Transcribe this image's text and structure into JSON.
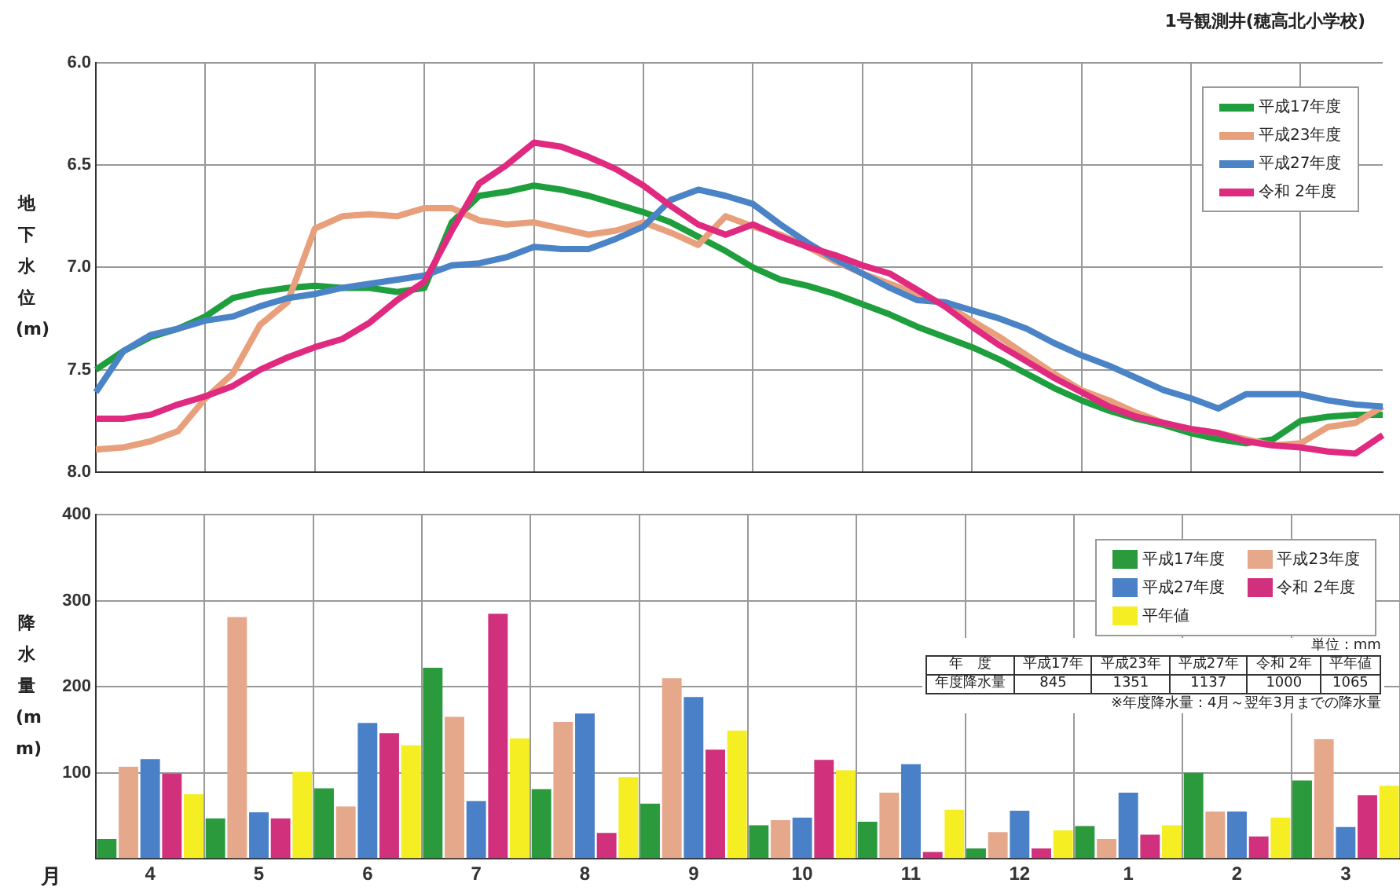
{
  "chart_data": [
    {
      "type": "line",
      "title": "1号観測井(穂高北小学校)",
      "ylabel": "地下水位(m)",
      "categories": [
        null,
        null,
        null,
        null,
        null,
        null,
        null,
        null,
        null,
        null,
        null,
        null,
        null,
        null,
        null,
        null,
        null,
        null,
        null,
        null,
        null,
        null,
        null,
        null,
        null,
        null,
        null,
        null,
        null,
        null,
        null,
        null,
        null,
        null,
        null,
        null,
        null,
        null,
        null,
        null,
        null,
        null,
        null,
        null,
        null,
        null,
        null,
        null
      ],
      "ylim": [
        8.0,
        6.0
      ],
      "yticks": [
        {
          "value": 6,
          "label": "6.0"
        },
        {
          "value": 6.5,
          "label": "6.5"
        },
        {
          "value": 7,
          "label": "7.0"
        },
        {
          "value": 7.5,
          "label": "7.5"
        },
        {
          "value": 8,
          "label": "8.0"
        }
      ],
      "tick_labels": "y",
      "grid": true,
      "legend": "top right",
      "series": [
        {
          "name": "平成17年度",
          "color": "#1e9e3c",
          "values": [
            7.5,
            7.41,
            7.34,
            7.3,
            7.24,
            7.15,
            7.12,
            7.1,
            7.09,
            7.1,
            7.1,
            7.12,
            7.1,
            6.78,
            6.65,
            6.63,
            6.6,
            6.62,
            6.65,
            6.69,
            6.73,
            6.78,
            6.85,
            6.92,
            7.0,
            7.06,
            7.09,
            7.13,
            7.18,
            7.23,
            7.29,
            7.34,
            7.39,
            7.45,
            7.52,
            7.59,
            7.65,
            7.7,
            7.74,
            7.77,
            7.81,
            7.84,
            7.86,
            7.84,
            7.75,
            7.73,
            7.72,
            7.72
          ]
        },
        {
          "name": "平成23年度",
          "color": "#e8a07c",
          "values": [
            7.89,
            7.88,
            7.85,
            7.8,
            7.64,
            7.52,
            7.28,
            7.17,
            6.81,
            6.75,
            6.74,
            6.75,
            6.71,
            6.71,
            6.77,
            6.79,
            6.78,
            6.81,
            6.84,
            6.82,
            6.78,
            6.83,
            6.89,
            6.75,
            6.8,
            6.84,
            6.9,
            6.97,
            7.03,
            7.08,
            7.13,
            7.18,
            7.26,
            7.34,
            7.43,
            7.52,
            7.6,
            7.65,
            7.71,
            7.76,
            7.79,
            7.81,
            7.84,
            7.87,
            7.86,
            7.78,
            7.76,
            7.68
          ]
        },
        {
          "name": "平成27年度",
          "color": "#4a84c6",
          "values": [
            7.61,
            7.41,
            7.33,
            7.3,
            7.26,
            7.24,
            7.19,
            7.15,
            7.13,
            7.1,
            7.08,
            7.06,
            7.04,
            6.99,
            6.98,
            6.95,
            6.9,
            6.91,
            6.91,
            6.86,
            6.8,
            6.67,
            6.62,
            6.65,
            6.69,
            6.79,
            6.88,
            6.96,
            7.03,
            7.1,
            7.16,
            7.17,
            7.21,
            7.25,
            7.3,
            7.37,
            7.43,
            7.48,
            7.54,
            7.6,
            7.64,
            7.69,
            7.62,
            7.62,
            7.62,
            7.65,
            7.67,
            7.68
          ]
        },
        {
          "name": "令和 2年度",
          "color": "#e02a80",
          "values": [
            7.74,
            7.74,
            7.72,
            7.67,
            7.63,
            7.58,
            7.5,
            7.44,
            7.39,
            7.35,
            7.27,
            7.16,
            7.07,
            6.82,
            6.59,
            6.5,
            6.39,
            6.41,
            6.46,
            6.52,
            6.6,
            6.7,
            6.79,
            6.84,
            6.79,
            6.85,
            6.9,
            6.94,
            6.99,
            7.03,
            7.11,
            7.19,
            7.29,
            7.38,
            7.46,
            7.54,
            7.61,
            7.68,
            7.73,
            7.76,
            7.79,
            7.81,
            7.85,
            7.87,
            7.88,
            7.9,
            7.91,
            7.82
          ]
        }
      ]
    },
    {
      "type": "bar",
      "xlabel": "月",
      "ylabel": "降水量(mm)",
      "categories": [
        "4",
        "5",
        "6",
        "7",
        "8",
        "9",
        "10",
        "11",
        "12",
        "1",
        "2",
        "3"
      ],
      "ylim": [
        0,
        400
      ],
      "yticks": [
        {
          "value": 0,
          "label": null
        },
        100,
        200,
        300,
        400
      ],
      "grid": true,
      "legend": "top right",
      "series": [
        {
          "name": "平成17年度",
          "color": "#2a9a3c",
          "values": [
            23,
            47,
            82,
            222,
            81,
            64,
            39,
            43,
            12,
            38,
            100,
            91
          ]
        },
        {
          "name": "平成23年度",
          "color": "#e6a88a",
          "values": [
            107,
            281,
            61,
            165,
            159,
            210,
            45,
            77,
            31,
            23,
            55,
            139
          ]
        },
        {
          "name": "平成27年度",
          "color": "#4a80c8",
          "values": [
            116,
            54,
            158,
            67,
            169,
            188,
            48,
            110,
            56,
            77,
            55,
            37
          ]
        },
        {
          "name": "令和 2年度",
          "color": "#d0307c",
          "values": [
            99,
            47,
            146,
            285,
            30,
            127,
            115,
            8,
            12,
            28,
            26,
            74
          ]
        },
        {
          "name": "平年値",
          "color": "#f4ee22",
          "values": [
            75,
            101,
            132,
            140,
            95,
            149,
            103,
            57,
            33,
            39,
            48,
            85
          ]
        }
      ],
      "annotations": [
        "単位：mm",
        "年　度",
        "平成17年",
        "平成23年",
        "平成27年",
        "令和 2年",
        "平年値",
        "年度降水量",
        "845",
        "1351",
        "1137",
        "1000",
        "1065",
        "※年度降水量：4月～翌年3月までの降水量"
      ]
    }
  ]
}
